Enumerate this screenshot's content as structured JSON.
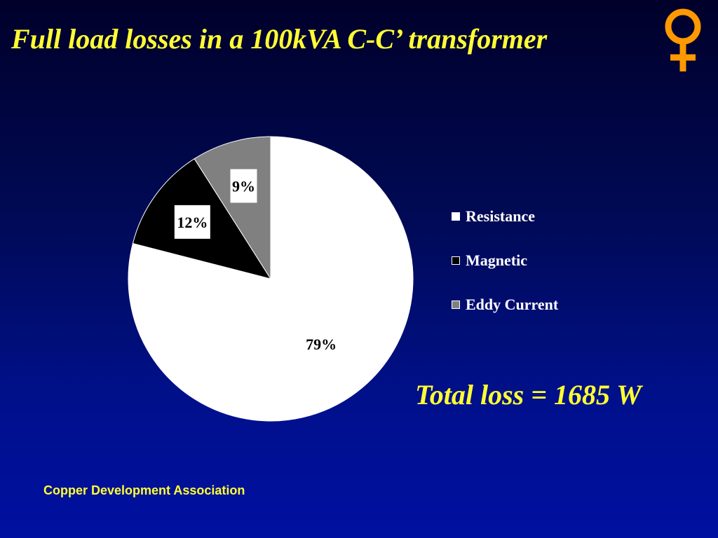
{
  "slide": {
    "title": "Full load losses in a 100kVA C-C’ transformer",
    "total_loss": "Total loss = 1685 W",
    "footer": "Copper Development Association",
    "symbol_icon": "venus-symbol-icon",
    "accent_color": "#ffff33",
    "symbol_color": "#ff9900"
  },
  "chart_data": {
    "type": "pie",
    "title": "",
    "categories": [
      "Resistance",
      "Magnetic",
      "Eddy Current"
    ],
    "values": [
      79,
      12,
      9
    ],
    "labels": [
      "79%",
      "12%",
      "9%"
    ],
    "colors": [
      "#ffffff",
      "#000000",
      "#808080"
    ],
    "legend": "right"
  }
}
